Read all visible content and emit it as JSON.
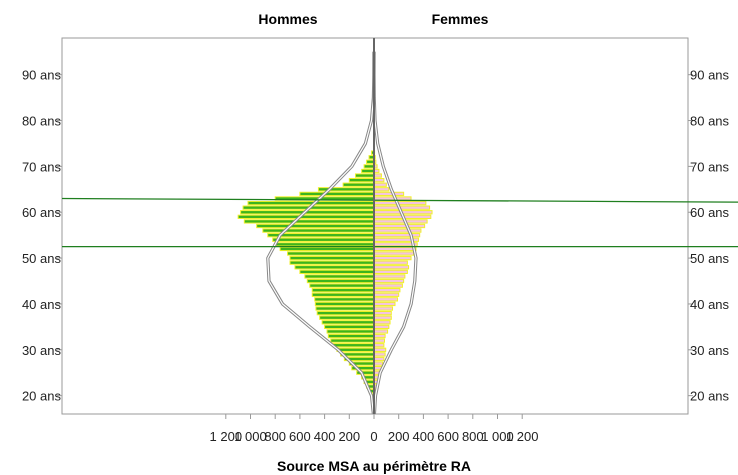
{
  "chart_data": {
    "type": "bar",
    "orientation": "horizontal",
    "layout": "population-pyramid",
    "header_left": "Hommes",
    "header_right": "Femmes",
    "caption": "Source MSA au périmètre RA",
    "x_ticks": [
      "1 200",
      "1 000",
      "800",
      "600",
      "400",
      "200",
      "0",
      "200",
      "400",
      "600",
      "800",
      "1 000",
      "1 200"
    ],
    "x_tick_values": [
      -1200,
      -1000,
      -800,
      -600,
      -400,
      -200,
      0,
      200,
      400,
      600,
      800,
      1000,
      1200
    ],
    "xlim": [
      -1300,
      1300
    ],
    "y_ticks": [
      "20 ans",
      "30 ans",
      "40 ans",
      "50 ans",
      "60 ans",
      "70 ans",
      "80 ans",
      "90 ans"
    ],
    "y_tick_values": [
      20,
      30,
      40,
      50,
      60,
      70,
      80,
      90
    ],
    "ylim": [
      16,
      98
    ],
    "grid": false,
    "ages": [
      18,
      19,
      20,
      21,
      22,
      23,
      24,
      25,
      26,
      27,
      28,
      29,
      30,
      31,
      32,
      33,
      34,
      35,
      36,
      37,
      38,
      39,
      40,
      41,
      42,
      43,
      44,
      45,
      46,
      47,
      48,
      49,
      50,
      51,
      52,
      53,
      54,
      55,
      56,
      57,
      58,
      59,
      60,
      61,
      62,
      63,
      64,
      65,
      66,
      67,
      68,
      69,
      70,
      71,
      72,
      73
    ],
    "series": [
      {
        "name": "Hommes",
        "color": "#3cb41e",
        "edge": "#f0f02a",
        "values": [
          8,
          15,
          25,
          40,
          60,
          80,
          100,
          140,
          180,
          200,
          240,
          270,
          300,
          330,
          350,
          370,
          380,
          400,
          420,
          440,
          460,
          470,
          475,
          480,
          500,
          500,
          520,
          540,
          560,
          600,
          640,
          680,
          680,
          700,
          760,
          800,
          820,
          860,
          900,
          950,
          1050,
          1100,
          1080,
          1060,
          1020,
          800,
          600,
          450,
          250,
          200,
          150,
          100,
          80,
          60,
          40,
          20
        ]
      },
      {
        "name": "Femmes",
        "color": "#f4c4e0",
        "edge": "#f0f02a",
        "values": [
          4,
          8,
          12,
          18,
          25,
          32,
          40,
          50,
          60,
          70,
          80,
          90,
          95,
          80,
          85,
          90,
          110,
          120,
          130,
          140,
          140,
          150,
          170,
          190,
          200,
          210,
          230,
          240,
          250,
          270,
          280,
          270,
          300,
          320,
          340,
          350,
          360,
          370,
          380,
          410,
          430,
          460,
          470,
          450,
          420,
          300,
          240,
          120,
          100,
          80,
          60,
          40,
          25,
          15,
          10,
          5
        ]
      }
    ],
    "reference_curves": {
      "description_values_men": {
        "ages": [
          16,
          20,
          25,
          30,
          35,
          40,
          45,
          50,
          55,
          60,
          65,
          70,
          75,
          80,
          85,
          90,
          95
        ],
        "values": [
          -5,
          -20,
          -100,
          -290,
          -520,
          -740,
          -850,
          -860,
          -760,
          -560,
          -360,
          -180,
          -70,
          -20,
          -5,
          -1,
          0
        ]
      },
      "description_values_women": {
        "ages": [
          16,
          20,
          25,
          30,
          35,
          40,
          45,
          50,
          55,
          60,
          65,
          70,
          75,
          80,
          85,
          90,
          95
        ],
        "values": [
          3,
          12,
          50,
          140,
          240,
          300,
          330,
          340,
          300,
          220,
          140,
          75,
          30,
          8,
          2,
          0,
          0
        ]
      },
      "color": "#888888"
    },
    "reference_lines": [
      {
        "color": "#1f7f1f",
        "y_left": 63,
        "y_right": 62.2
      },
      {
        "color": "#1f7f1f",
        "y_left": 52.5,
        "y_right": 52.5
      }
    ]
  }
}
